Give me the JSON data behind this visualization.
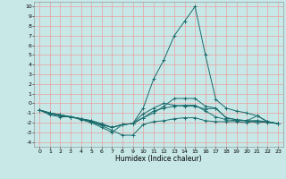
{
  "title": "",
  "xlabel": "Humidex (Indice chaleur)",
  "ylabel": "",
  "xlim": [
    -0.5,
    23.5
  ],
  "ylim": [
    -4.5,
    10.5
  ],
  "xticks": [
    0,
    1,
    2,
    3,
    4,
    5,
    6,
    7,
    8,
    9,
    10,
    11,
    12,
    13,
    14,
    15,
    16,
    17,
    18,
    19,
    20,
    21,
    22,
    23
  ],
  "yticks": [
    -4,
    -3,
    -2,
    -1,
    0,
    1,
    2,
    3,
    4,
    5,
    6,
    7,
    8,
    9,
    10
  ],
  "background_color": "#c8e8e8",
  "grid_color": "#e8a0a0",
  "line_color": "#1a6b6b",
  "curves": [
    {
      "x": [
        0,
        1,
        2,
        3,
        4,
        5,
        6,
        7,
        8,
        9,
        10,
        11,
        12,
        13,
        14,
        15,
        16,
        17,
        18,
        19,
        20,
        21,
        22,
        23
      ],
      "y": [
        -0.7,
        -1.2,
        -1.4,
        -1.4,
        -1.6,
        -2.0,
        -2.3,
        -2.8,
        -3.3,
        -3.3,
        -2.2,
        -1.9,
        -1.8,
        -1.6,
        -1.5,
        -1.5,
        -1.8,
        -1.9,
        -1.9,
        -1.9,
        -2.0,
        -1.8,
        -2.0,
        -2.1
      ]
    },
    {
      "x": [
        0,
        1,
        2,
        3,
        4,
        5,
        6,
        7,
        8,
        9,
        10,
        11,
        12,
        13,
        14,
        15,
        16,
        17,
        18,
        19,
        20,
        21,
        22,
        23
      ],
      "y": [
        -0.7,
        -1.1,
        -1.3,
        -1.4,
        -1.6,
        -1.8,
        -2.1,
        -2.5,
        -2.2,
        -2.1,
        -1.5,
        -0.8,
        -0.5,
        -0.3,
        -0.2,
        -0.2,
        -0.8,
        -1.4,
        -1.7,
        -1.8,
        -1.8,
        -1.3,
        -1.9,
        -2.1
      ]
    },
    {
      "x": [
        0,
        1,
        2,
        3,
        4,
        5,
        6,
        7,
        8,
        9,
        10,
        11,
        12,
        13,
        14,
        15,
        16,
        17,
        18,
        19,
        20,
        21,
        22,
        23
      ],
      "y": [
        -0.7,
        -1.0,
        -1.2,
        -1.4,
        -1.6,
        -1.8,
        -2.2,
        -2.5,
        -2.2,
        -2.1,
        -1.1,
        -0.5,
        0.0,
        -0.2,
        -0.3,
        -0.3,
        -0.6,
        -0.5,
        -1.5,
        -1.7,
        -1.8,
        -2.0,
        -1.9,
        -2.1
      ]
    },
    {
      "x": [
        0,
        1,
        2,
        3,
        4,
        5,
        6,
        7,
        8,
        9,
        10,
        11,
        12,
        13,
        14,
        15,
        16,
        17,
        18,
        19,
        20,
        21,
        22,
        23
      ],
      "y": [
        -0.7,
        -1.0,
        -1.2,
        -1.4,
        -1.7,
        -2.0,
        -2.5,
        -3.0,
        -2.2,
        -2.1,
        -1.5,
        -1.0,
        -0.3,
        0.5,
        0.5,
        0.5,
        -0.3,
        -0.5,
        -1.5,
        -1.7,
        -1.8,
        -1.8,
        -1.9,
        -2.1
      ]
    },
    {
      "x": [
        0,
        1,
        2,
        3,
        4,
        5,
        6,
        7,
        8,
        9,
        10,
        11,
        12,
        13,
        14,
        15,
        16,
        17,
        18,
        19,
        20,
        21,
        22,
        23
      ],
      "y": [
        -0.7,
        -1.0,
        -1.2,
        -1.4,
        -1.6,
        -1.9,
        -2.2,
        -2.5,
        -2.2,
        -2.1,
        -0.5,
        2.5,
        4.5,
        7.0,
        8.5,
        10.0,
        5.0,
        0.4,
        -0.5,
        -0.8,
        -1.0,
        -1.3,
        -1.9,
        -2.1
      ]
    }
  ]
}
